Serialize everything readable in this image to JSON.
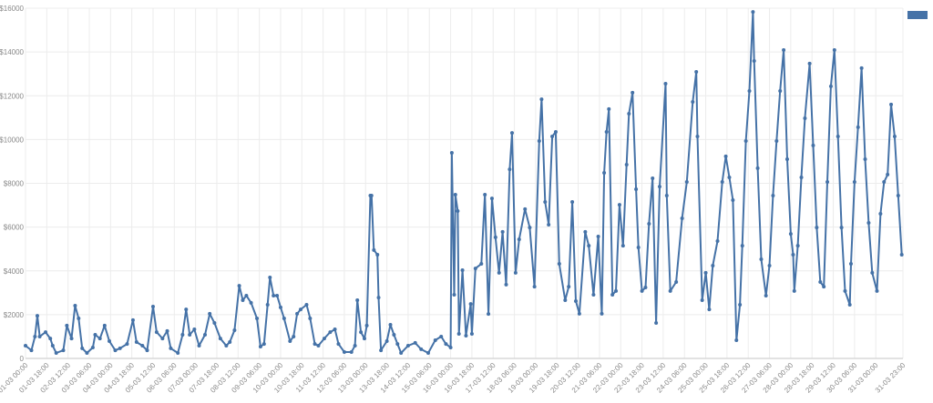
{
  "chart_data": {
    "type": "line",
    "title": "",
    "xlabel": "",
    "ylabel": "",
    "x_unit": "hours since 01-03 00:00",
    "xlim": [
      0,
      743
    ],
    "ylim": [
      0,
      16000
    ],
    "grid": true,
    "legend": {
      "position": "top-right",
      "entries": [
        {
          "name": "",
          "color": "#4572a7"
        }
      ]
    },
    "y_ticks": [
      {
        "value": 0,
        "label": "0"
      },
      {
        "value": 2000,
        "label": "$2000"
      },
      {
        "value": 4000,
        "label": "$4000"
      },
      {
        "value": 6000,
        "label": "$6000"
      },
      {
        "value": 8000,
        "label": "$8000"
      },
      {
        "value": 10000,
        "label": "$10000"
      },
      {
        "value": 12000,
        "label": "$12000"
      },
      {
        "value": 14000,
        "label": "$14000"
      },
      {
        "value": 16000,
        "label": "$16000"
      }
    ],
    "x_ticks": [
      "01-03 00:00",
      "01-03 18:00",
      "02-03 12:00",
      "03-03 06:00",
      "04-03 00:00",
      "04-03 18:00",
      "05-03 12:00",
      "06-03 06:00",
      "07-03 00:00",
      "07-03 18:00",
      "08-03 12:00",
      "09-03 06:00",
      "10-03 00:00",
      "10-03 18:00",
      "11-03 12:00",
      "12-03 06:00",
      "13-03 00:00",
      "13-03 18:00",
      "14-03 12:00",
      "15-03 06:00",
      "16-03 00:00",
      "16-03 18:00",
      "17-03 12:00",
      "18-03 06:00",
      "19-03 00:00",
      "19-03 18:00",
      "20-03 12:00",
      "21-03 06:00",
      "22-03 00:00",
      "22-03 18:00",
      "23-03 12:00",
      "24-03 06:00",
      "25-03 00:00",
      "25-03 18:00",
      "26-03 12:00",
      "27-03 06:00",
      "28-03 00:00",
      "28-03 18:00",
      "29-03 12:00",
      "30-03 06:00",
      "31-03 00:00",
      "31-03 23:00"
    ],
    "x_tick_hours_step": 18,
    "series": [
      {
        "name": "",
        "color": "#4572a7",
        "points": [
          [
            0,
            580
          ],
          [
            5,
            370
          ],
          [
            8,
            1000
          ],
          [
            10,
            1950
          ],
          [
            12,
            1000
          ],
          [
            17,
            1200
          ],
          [
            21,
            910
          ],
          [
            23,
            580
          ],
          [
            26,
            250
          ],
          [
            32,
            370
          ],
          [
            35,
            1500
          ],
          [
            39,
            910
          ],
          [
            42,
            2410
          ],
          [
            45,
            1830
          ],
          [
            48,
            460
          ],
          [
            52,
            250
          ],
          [
            57,
            500
          ],
          [
            59,
            1080
          ],
          [
            63,
            910
          ],
          [
            67,
            1500
          ],
          [
            71,
            790
          ],
          [
            76,
            370
          ],
          [
            80,
            460
          ],
          [
            86,
            660
          ],
          [
            91,
            1750
          ],
          [
            94,
            750
          ],
          [
            99,
            580
          ],
          [
            103,
            370
          ],
          [
            108,
            2370
          ],
          [
            111,
            1200
          ],
          [
            116,
            910
          ],
          [
            120,
            1250
          ],
          [
            123,
            460
          ],
          [
            129,
            250
          ],
          [
            133,
            1080
          ],
          [
            136,
            2240
          ],
          [
            139,
            1080
          ],
          [
            143,
            1330
          ],
          [
            147,
            580
          ],
          [
            152,
            1080
          ],
          [
            156,
            2040
          ],
          [
            160,
            1620
          ],
          [
            165,
            910
          ],
          [
            170,
            580
          ],
          [
            173,
            750
          ],
          [
            177,
            1290
          ],
          [
            181,
            3320
          ],
          [
            184,
            2660
          ],
          [
            187,
            2870
          ],
          [
            191,
            2540
          ],
          [
            196,
            1830
          ],
          [
            199,
            540
          ],
          [
            202,
            660
          ],
          [
            205,
            2450
          ],
          [
            207,
            3700
          ],
          [
            210,
            2870
          ],
          [
            213,
            2870
          ],
          [
            216,
            2330
          ],
          [
            219,
            1830
          ],
          [
            224,
            790
          ],
          [
            227,
            1000
          ],
          [
            230,
            2040
          ],
          [
            233,
            2240
          ],
          [
            238,
            2450
          ],
          [
            241,
            1830
          ],
          [
            245,
            660
          ],
          [
            248,
            580
          ],
          [
            253,
            910
          ],
          [
            258,
            1200
          ],
          [
            262,
            1330
          ],
          [
            265,
            660
          ],
          [
            270,
            290
          ],
          [
            276,
            290
          ],
          [
            279,
            580
          ],
          [
            281,
            2660
          ],
          [
            284,
            1200
          ],
          [
            287,
            910
          ],
          [
            289,
            1500
          ],
          [
            292,
            7440
          ],
          [
            293,
            7440
          ],
          [
            295,
            4950
          ],
          [
            298,
            4740
          ],
          [
            299,
            2780
          ],
          [
            301,
            370
          ],
          [
            306,
            790
          ],
          [
            309,
            1540
          ],
          [
            312,
            1080
          ],
          [
            315,
            660
          ],
          [
            318,
            250
          ],
          [
            324,
            580
          ],
          [
            330,
            710
          ],
          [
            335,
            420
          ],
          [
            341,
            250
          ],
          [
            347,
            830
          ],
          [
            352,
            1000
          ],
          [
            356,
            660
          ],
          [
            360,
            500
          ],
          [
            361,
            9390
          ],
          [
            363,
            2910
          ],
          [
            364,
            7480
          ],
          [
            366,
            6730
          ],
          [
            367,
            1120
          ],
          [
            370,
            4030
          ],
          [
            373,
            1040
          ],
          [
            377,
            2490
          ],
          [
            378,
            1120
          ],
          [
            381,
            4110
          ],
          [
            386,
            4320
          ],
          [
            389,
            7480
          ],
          [
            392,
            2030
          ],
          [
            395,
            7310
          ],
          [
            398,
            5530
          ],
          [
            401,
            3910
          ],
          [
            404,
            5780
          ],
          [
            407,
            3370
          ],
          [
            410,
            8640
          ],
          [
            412,
            10300
          ],
          [
            415,
            3910
          ],
          [
            418,
            5440
          ],
          [
            423,
            6820
          ],
          [
            427,
            5980
          ],
          [
            431,
            3280
          ],
          [
            435,
            9930
          ],
          [
            437,
            11840
          ],
          [
            440,
            7150
          ],
          [
            443,
            6110
          ],
          [
            446,
            10140
          ],
          [
            449,
            10350
          ],
          [
            452,
            4320
          ],
          [
            457,
            2660
          ],
          [
            460,
            3280
          ],
          [
            463,
            7150
          ],
          [
            466,
            2620
          ],
          [
            469,
            2040
          ],
          [
            474,
            5780
          ],
          [
            477,
            5150
          ],
          [
            481,
            2910
          ],
          [
            485,
            5570
          ],
          [
            488,
            2040
          ],
          [
            490,
            8480
          ],
          [
            492,
            10350
          ],
          [
            494,
            11390
          ],
          [
            497,
            2910
          ],
          [
            500,
            3080
          ],
          [
            503,
            7020
          ],
          [
            506,
            5150
          ],
          [
            509,
            8850
          ],
          [
            511,
            11180
          ],
          [
            514,
            12140
          ],
          [
            517,
            7730
          ],
          [
            519,
            5070
          ],
          [
            522,
            3080
          ],
          [
            525,
            3240
          ],
          [
            528,
            6150
          ],
          [
            531,
            8230
          ],
          [
            534,
            1620
          ],
          [
            537,
            7850
          ],
          [
            542,
            12550
          ],
          [
            543,
            7440
          ],
          [
            546,
            3080
          ],
          [
            551,
            3490
          ],
          [
            556,
            6400
          ],
          [
            560,
            8060
          ],
          [
            565,
            11720
          ],
          [
            568,
            13090
          ],
          [
            569,
            10140
          ],
          [
            573,
            2660
          ],
          [
            576,
            3910
          ],
          [
            579,
            2240
          ],
          [
            582,
            4240
          ],
          [
            586,
            5360
          ],
          [
            590,
            8060
          ],
          [
            593,
            9230
          ],
          [
            596,
            8270
          ],
          [
            599,
            7230
          ],
          [
            602,
            830
          ],
          [
            605,
            2450
          ],
          [
            607,
            5150
          ],
          [
            610,
            9930
          ],
          [
            613,
            12220
          ],
          [
            616,
            15830
          ],
          [
            617,
            13590
          ],
          [
            620,
            8690
          ],
          [
            623,
            4530
          ],
          [
            627,
            2870
          ],
          [
            630,
            4240
          ],
          [
            633,
            7440
          ],
          [
            636,
            9930
          ],
          [
            639,
            12220
          ],
          [
            642,
            14090
          ],
          [
            645,
            9100
          ],
          [
            648,
            5690
          ],
          [
            650,
            4740
          ],
          [
            651,
            3080
          ],
          [
            654,
            5150
          ],
          [
            657,
            8270
          ],
          [
            660,
            10970
          ],
          [
            664,
            13470
          ],
          [
            667,
            9730
          ],
          [
            670,
            5980
          ],
          [
            673,
            3490
          ],
          [
            676,
            3280
          ],
          [
            679,
            8060
          ],
          [
            682,
            12430
          ],
          [
            685,
            14090
          ],
          [
            688,
            10140
          ],
          [
            691,
            5980
          ],
          [
            694,
            3080
          ],
          [
            698,
            2450
          ],
          [
            699,
            4320
          ],
          [
            702,
            8060
          ],
          [
            705,
            10560
          ],
          [
            708,
            13260
          ],
          [
            711,
            9100
          ],
          [
            714,
            6190
          ],
          [
            717,
            3910
          ],
          [
            721,
            3080
          ],
          [
            724,
            6610
          ],
          [
            727,
            8060
          ],
          [
            730,
            8400
          ],
          [
            733,
            11600
          ],
          [
            736,
            10140
          ],
          [
            739,
            7440
          ],
          [
            742,
            4740
          ]
        ]
      }
    ]
  }
}
